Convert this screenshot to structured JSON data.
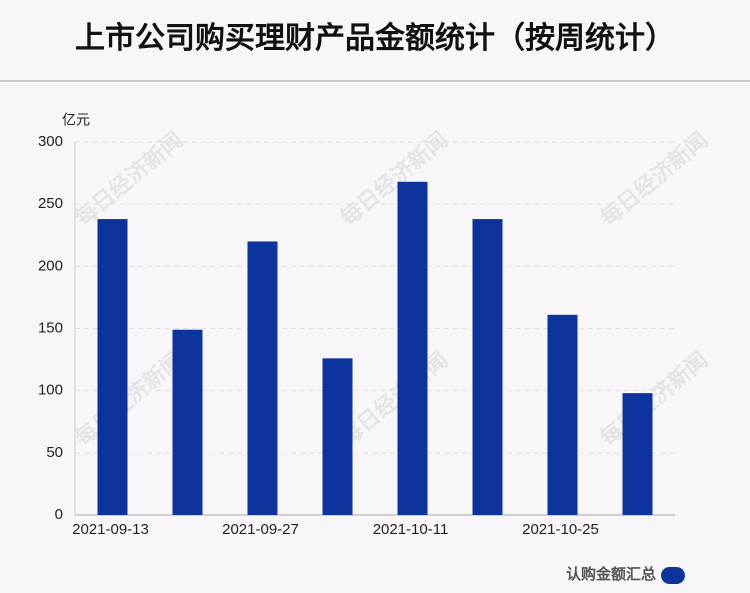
{
  "chart_data": {
    "type": "bar",
    "title": "上市公司购买理财产品金额统计（按周统计）",
    "y_unit": "亿元",
    "watermark": "每日经济新闻",
    "categories": [
      "2021-09-13",
      null,
      "2021-09-27",
      null,
      "2021-10-11",
      null,
      "2021-10-25",
      null
    ],
    "series": [
      {
        "name": "认购金额汇总",
        "color": "#0d339c",
        "values": [
          238,
          149,
          220,
          126,
          268,
          238,
          161,
          98
        ]
      }
    ],
    "ylim": [
      0,
      300
    ],
    "yticks": [
      0,
      50,
      100,
      150,
      200,
      250,
      300
    ],
    "grid": true,
    "legend": "bottom-right"
  }
}
